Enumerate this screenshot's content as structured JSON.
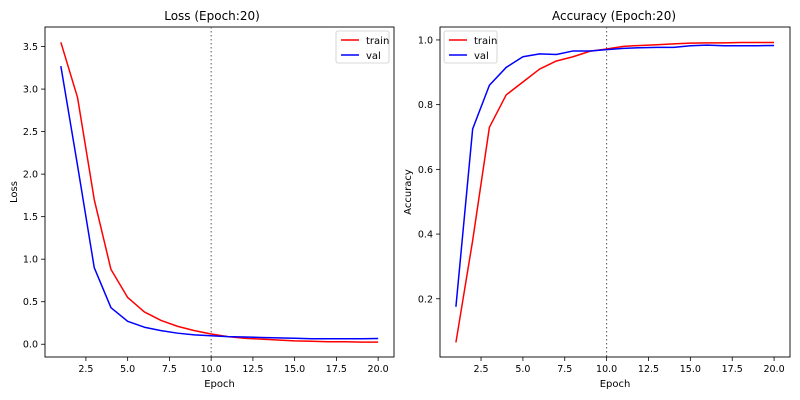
{
  "chart_data": [
    {
      "type": "line",
      "title": "Loss (Epoch:20)",
      "xlabel": "Epoch",
      "ylabel": "Loss",
      "xlim": [
        0.05,
        20.95
      ],
      "ylim": [
        -0.15,
        3.73
      ],
      "xticks": [
        2.5,
        5.0,
        7.5,
        10.0,
        12.5,
        15.0,
        17.5,
        20.0
      ],
      "xtick_labels": [
        "2.5",
        "5.0",
        "7.5",
        "10.0",
        "12.5",
        "15.0",
        "17.5",
        "20.0"
      ],
      "yticks": [
        0.0,
        0.5,
        1.0,
        1.5,
        2.0,
        2.5,
        3.0,
        3.5
      ],
      "ytick_labels": [
        "0.0",
        "0.5",
        "1.0",
        "1.5",
        "2.0",
        "2.5",
        "3.0",
        "3.5"
      ],
      "vline": 10,
      "legend_position": "top-right",
      "x": [
        1,
        2,
        3,
        4,
        5,
        6,
        7,
        8,
        9,
        10,
        11,
        12,
        13,
        14,
        15,
        16,
        17,
        18,
        19,
        20
      ],
      "series": [
        {
          "name": "train",
          "color": "#ff0000",
          "values": [
            3.55,
            2.9,
            1.7,
            0.88,
            0.55,
            0.38,
            0.28,
            0.21,
            0.16,
            0.12,
            0.09,
            0.07,
            0.06,
            0.05,
            0.04,
            0.035,
            0.03,
            0.03,
            0.025,
            0.025
          ]
        },
        {
          "name": "val",
          "color": "#0000ff",
          "values": [
            3.27,
            2.1,
            0.9,
            0.43,
            0.27,
            0.2,
            0.16,
            0.13,
            0.11,
            0.1,
            0.09,
            0.085,
            0.08,
            0.075,
            0.07,
            0.065,
            0.065,
            0.065,
            0.065,
            0.068
          ]
        }
      ]
    },
    {
      "type": "line",
      "title": "Accuracy (Epoch:20)",
      "xlabel": "Epoch",
      "ylabel": "Accuracy",
      "xlim": [
        0.05,
        20.95
      ],
      "ylim": [
        0.02,
        1.04
      ],
      "xticks": [
        2.5,
        5.0,
        7.5,
        10.0,
        12.5,
        15.0,
        17.5,
        20.0
      ],
      "xtick_labels": [
        "2.5",
        "5.0",
        "7.5",
        "10.0",
        "12.5",
        "15.0",
        "17.5",
        "20.0"
      ],
      "yticks": [
        0.2,
        0.4,
        0.6,
        0.8,
        1.0
      ],
      "ytick_labels": [
        "0.2",
        "0.4",
        "0.6",
        "0.8",
        "1.0"
      ],
      "vline": 10,
      "legend_position": "top-left",
      "x": [
        1,
        2,
        3,
        4,
        5,
        6,
        7,
        8,
        9,
        10,
        11,
        12,
        13,
        14,
        15,
        16,
        17,
        18,
        19,
        20
      ],
      "series": [
        {
          "name": "train",
          "color": "#ff0000",
          "values": [
            0.065,
            0.38,
            0.73,
            0.83,
            0.87,
            0.91,
            0.935,
            0.948,
            0.965,
            0.972,
            0.98,
            0.983,
            0.985,
            0.988,
            0.99,
            0.991,
            0.991,
            0.992,
            0.992,
            0.992
          ]
        },
        {
          "name": "val",
          "color": "#0000ff",
          "values": [
            0.175,
            0.725,
            0.86,
            0.915,
            0.948,
            0.957,
            0.955,
            0.966,
            0.966,
            0.97,
            0.974,
            0.976,
            0.977,
            0.977,
            0.982,
            0.984,
            0.982,
            0.982,
            0.982,
            0.983
          ]
        }
      ]
    }
  ]
}
